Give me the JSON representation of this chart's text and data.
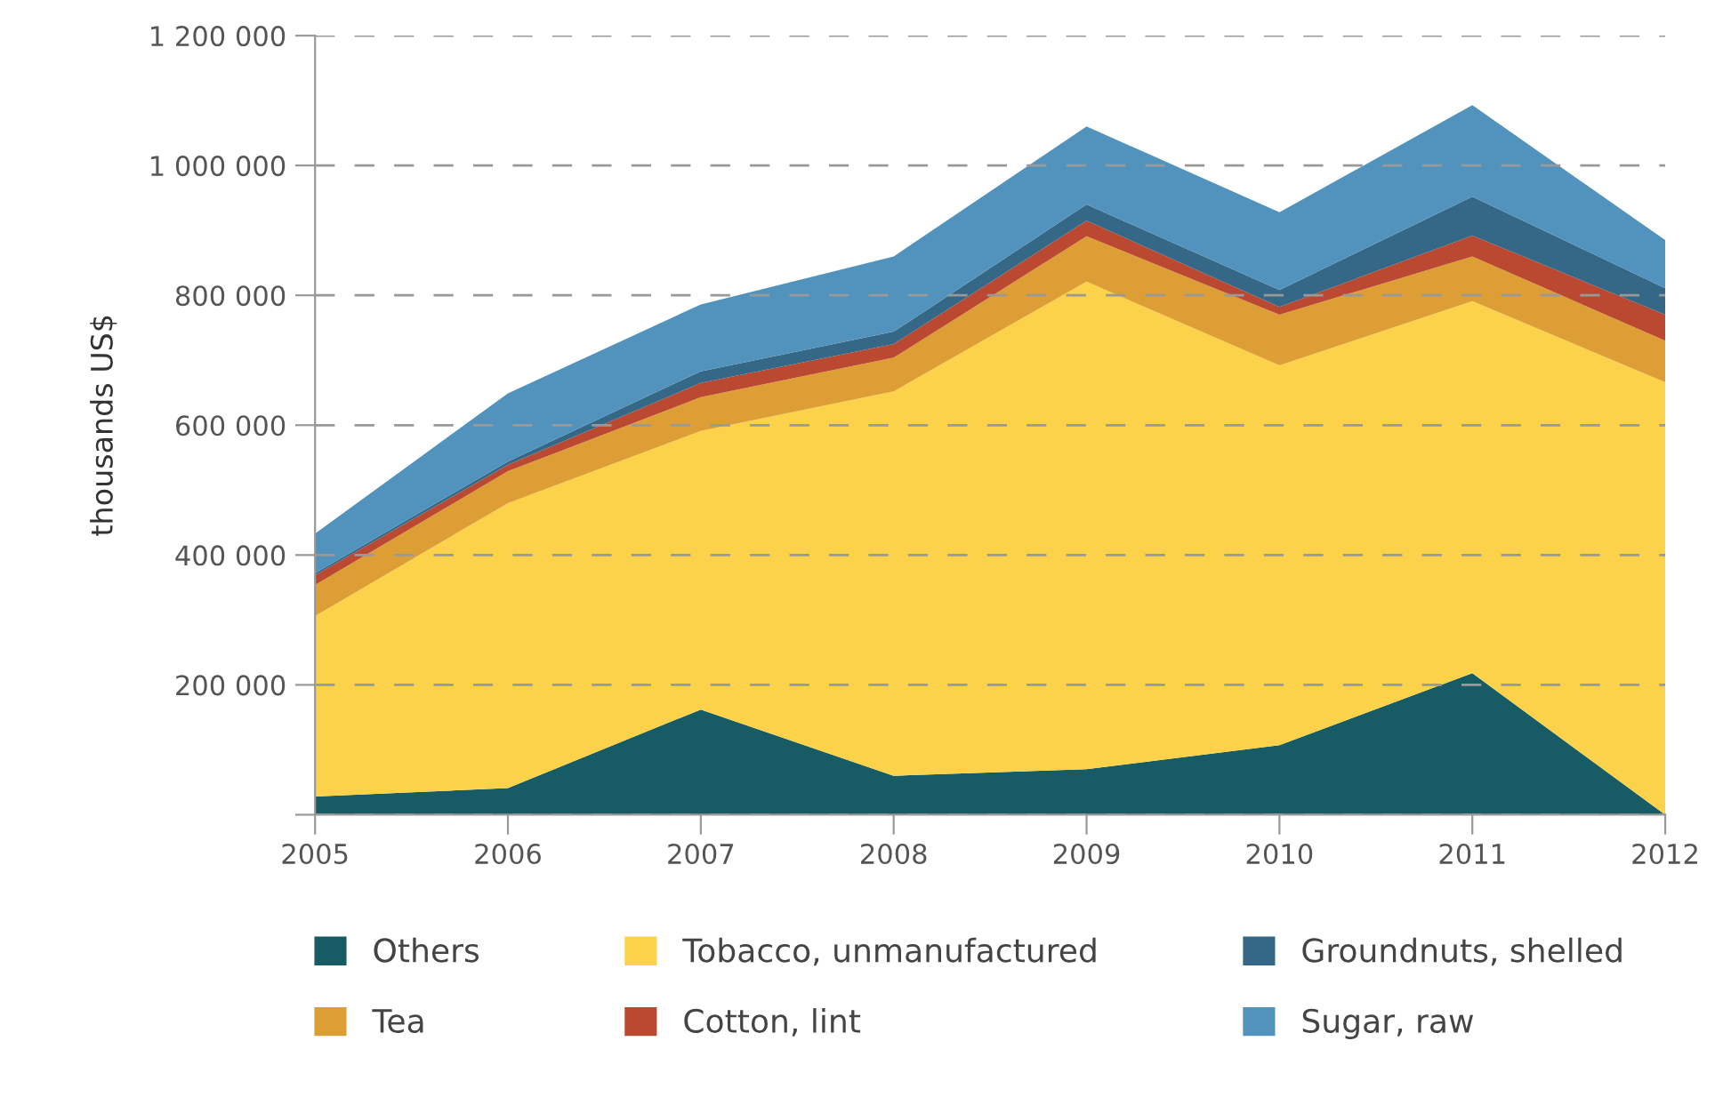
{
  "chart_data": {
    "type": "area",
    "stacked": true,
    "ylabel": "thousands US$",
    "x": [
      2005,
      2006,
      2007,
      2008,
      2009,
      2010,
      2011,
      2012
    ],
    "xlim": [
      2005,
      2012
    ],
    "xticks": [
      2005,
      2006,
      2007,
      2008,
      2009,
      2010,
      2011,
      2012
    ],
    "ylim": [
      0,
      1200000
    ],
    "yticks": [
      {
        "value": 0,
        "label": null
      },
      {
        "value": 200000,
        "label": "200 000"
      },
      {
        "value": 400000,
        "label": "400 000"
      },
      {
        "value": 600000,
        "label": "600 000"
      },
      {
        "value": 800000,
        "label": "800 000"
      },
      {
        "value": 1000000,
        "label": "1 000 000"
      },
      {
        "value": 1200000,
        "label": "1 200 000"
      }
    ],
    "grid": "y",
    "line_style": "dashed",
    "legend": "bottom",
    "series": [
      {
        "name": "Others",
        "color": "#175c64",
        "values": [
          28000,
          41000,
          162000,
          60000,
          70000,
          107000,
          218000,
          0
        ]
      },
      {
        "name": "Tobacco, unmanufactured",
        "color": "#fbd249",
        "values": [
          278000,
          439000,
          429000,
          592000,
          751000,
          585000,
          573000,
          666000
        ]
      },
      {
        "name": "Tea",
        "color": "#dd9f35",
        "values": [
          48000,
          49000,
          52000,
          52000,
          70000,
          78000,
          69000,
          64000
        ]
      },
      {
        "name": "Cotton, lint",
        "color": "#bb4831",
        "values": [
          15000,
          10000,
          22000,
          21000,
          24000,
          12000,
          32000,
          40000
        ]
      },
      {
        "name": "Groundnuts, shelled",
        "color": "#356787",
        "values": [
          3000,
          5000,
          18000,
          19000,
          25000,
          26000,
          60000,
          41000
        ]
      },
      {
        "name": "Sugar, raw",
        "color": "#5193bd",
        "values": [
          61000,
          105000,
          103000,
          116000,
          120000,
          120000,
          141000,
          74000
        ]
      }
    ]
  }
}
